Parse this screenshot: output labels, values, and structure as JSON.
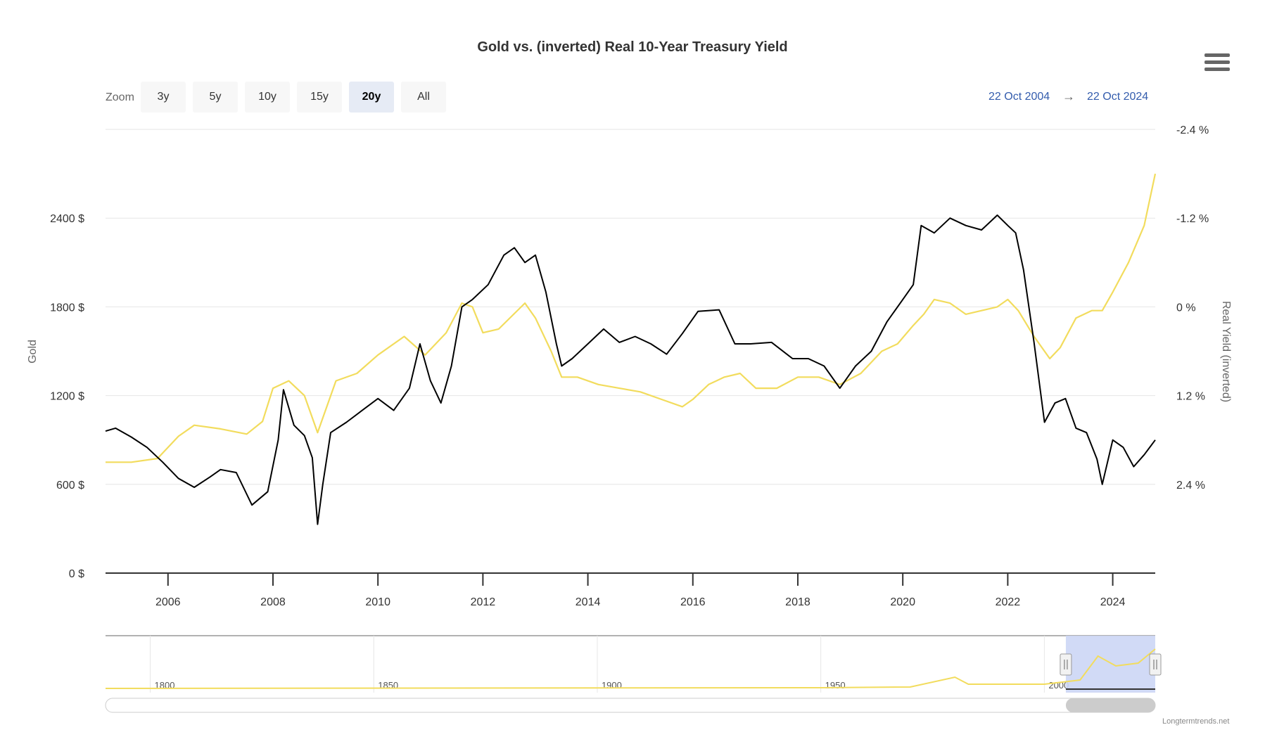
{
  "title": "Gold vs. (inverted) Real 10-Year Treasury Yield",
  "zoom": {
    "label": "Zoom",
    "buttons": [
      "3y",
      "5y",
      "10y",
      "15y",
      "20y",
      "All"
    ],
    "active": "20y"
  },
  "range": {
    "from": "22 Oct 2004",
    "arrow": "→",
    "to": "22 Oct 2024"
  },
  "credit": "Longtermtrends.net",
  "navigator_labels": [
    "1800",
    "1850",
    "1900",
    "1950",
    "2000"
  ],
  "colors": {
    "gold": "#000000",
    "real_yield": "#f2dc5d",
    "grid": "#e6e6e6",
    "nav_selection": "#ccd6f5",
    "link": "#335cad"
  },
  "chart_data": {
    "type": "line",
    "title": "Gold vs. (inverted) Real 10-Year Treasury Yield",
    "x_range": [
      2004.81,
      2024.81
    ],
    "x_ticks": [
      "2006",
      "2008",
      "2010",
      "2012",
      "2014",
      "2016",
      "2018",
      "2020",
      "2022",
      "2024"
    ],
    "y_left": {
      "label": "Gold",
      "ticks": [
        "0 $",
        "600 $",
        "1200 $",
        "1800 $",
        "2400 $"
      ],
      "range": [
        0,
        3000
      ]
    },
    "y_right": {
      "label": "Real Yield (inverted)",
      "ticks": [
        "2.4 %",
        "1.2 %",
        "0 %",
        "-1.2 %",
        "-2.4 %"
      ],
      "range": [
        3.6,
        -2.4
      ],
      "inverted": true
    },
    "grid": true,
    "series": [
      {
        "name": "Real Yield (inverted)",
        "axis": "right",
        "color": "#f2dc5d",
        "x": [
          2004.81,
          2005.3,
          2005.8,
          2006.2,
          2006.5,
          2007.0,
          2007.5,
          2007.8,
          2008.0,
          2008.3,
          2008.6,
          2008.85,
          2009.2,
          2009.6,
          2010.0,
          2010.5,
          2010.9,
          2011.3,
          2011.6,
          2011.8,
          2012.0,
          2012.3,
          2012.8,
          2013.0,
          2013.3,
          2013.5,
          2013.8,
          2014.2,
          2014.6,
          2015.0,
          2015.4,
          2015.8,
          2016.0,
          2016.3,
          2016.6,
          2016.9,
          2017.2,
          2017.6,
          2018.0,
          2018.4,
          2018.8,
          2019.2,
          2019.6,
          2019.9,
          2020.2,
          2020.4,
          2020.6,
          2020.9,
          2021.2,
          2021.5,
          2021.8,
          2022.0,
          2022.2,
          2022.5,
          2022.8,
          2023.0,
          2023.3,
          2023.6,
          2023.8,
          2024.0,
          2024.3,
          2024.6,
          2024.81
        ],
        "values": [
          2.1,
          2.1,
          2.05,
          1.75,
          1.6,
          1.65,
          1.72,
          1.55,
          1.1,
          1.0,
          1.2,
          1.7,
          1.0,
          0.9,
          0.65,
          0.4,
          0.65,
          0.35,
          -0.05,
          0.0,
          0.35,
          0.3,
          -0.05,
          0.15,
          0.6,
          0.95,
          0.95,
          1.05,
          1.1,
          1.15,
          1.25,
          1.35,
          1.25,
          1.05,
          0.95,
          0.9,
          1.1,
          1.1,
          0.95,
          0.95,
          1.05,
          0.9,
          0.6,
          0.5,
          0.25,
          0.1,
          -0.1,
          -0.05,
          0.1,
          0.05,
          0.0,
          -0.1,
          0.05,
          0.4,
          0.7,
          0.55,
          0.15,
          0.05,
          0.05,
          -0.2,
          -0.6,
          -1.1,
          -1.8
        ]
      },
      {
        "name": "Gold",
        "axis": "left",
        "color": "#000000",
        "x": [
          2004.81,
          2005.0,
          2005.3,
          2005.6,
          2005.9,
          2006.2,
          2006.5,
          2006.8,
          2007.0,
          2007.3,
          2007.6,
          2007.9,
          2008.1,
          2008.2,
          2008.4,
          2008.6,
          2008.75,
          2008.85,
          2008.95,
          2009.1,
          2009.4,
          2009.7,
          2010.0,
          2010.3,
          2010.6,
          2010.8,
          2011.0,
          2011.2,
          2011.4,
          2011.6,
          2011.8,
          2012.1,
          2012.4,
          2012.6,
          2012.8,
          2013.0,
          2013.2,
          2013.4,
          2013.5,
          2013.7,
          2014.0,
          2014.3,
          2014.6,
          2014.9,
          2015.2,
          2015.5,
          2015.8,
          2016.1,
          2016.5,
          2016.8,
          2017.1,
          2017.5,
          2017.9,
          2018.2,
          2018.5,
          2018.8,
          2019.1,
          2019.4,
          2019.7,
          2020.0,
          2020.2,
          2020.35,
          2020.6,
          2020.9,
          2021.2,
          2021.5,
          2021.8,
          2022.0,
          2022.15,
          2022.3,
          2022.5,
          2022.7,
          2022.9,
          2023.1,
          2023.3,
          2023.5,
          2023.7,
          2023.8,
          2024.0,
          2024.2,
          2024.4,
          2024.6,
          2024.81
        ],
        "values": [
          960,
          980,
          920,
          850,
          750,
          640,
          580,
          650,
          700,
          680,
          460,
          550,
          900,
          1240,
          1000,
          930,
          780,
          330,
          600,
          950,
          1020,
          1100,
          1180,
          1100,
          1250,
          1550,
          1300,
          1150,
          1400,
          1800,
          1850,
          1950,
          2150,
          2200,
          2100,
          2150,
          1900,
          1550,
          1400,
          1450,
          1550,
          1650,
          1560,
          1600,
          1550,
          1480,
          1620,
          1770,
          1780,
          1550,
          1550,
          1560,
          1450,
          1450,
          1400,
          1250,
          1400,
          1500,
          1700,
          1850,
          1950,
          2350,
          2300,
          2400,
          2350,
          2320,
          2420,
          2350,
          2300,
          2050,
          1560,
          1020,
          1150,
          1180,
          980,
          950,
          770,
          600,
          900,
          850,
          720,
          800,
          900
        ]
      }
    ]
  }
}
